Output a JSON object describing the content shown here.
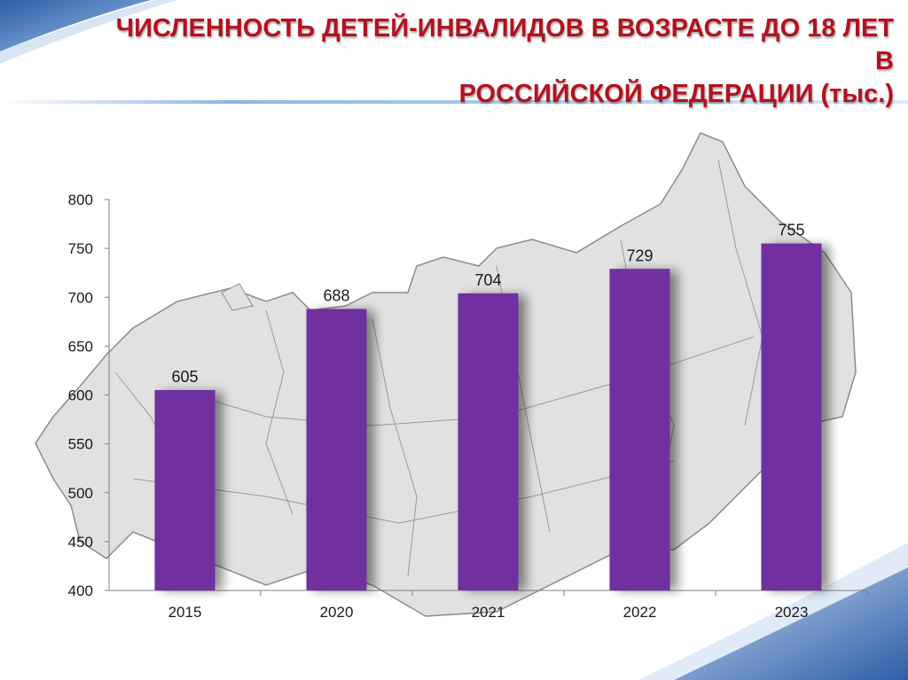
{
  "slide": {
    "title_line1": "ЧИСЛЕННОСТЬ ДЕТЕЙ-ИНВАЛИДОВ В ВОЗРАСТЕ ДО 18 ЛЕТ В",
    "title_line2": "РОССИЙСКОЙ ФЕДЕРАЦИИ (тыс.)"
  },
  "colors": {
    "title": "#b3121e",
    "bar": "#7030a0",
    "map": "#e1e1e1",
    "map_borders": "#8c8c8c",
    "accent_blue": "#3f6fb8"
  },
  "icons": [
    "russia-map-icon"
  ],
  "chart_data": {
    "type": "bar",
    "categories": [
      "2015",
      "2020",
      "2021",
      "2022",
      "2023"
    ],
    "values": [
      605,
      688,
      704,
      729,
      755
    ],
    "title": "",
    "xlabel": "",
    "ylabel": "",
    "ylim": [
      400,
      800
    ],
    "yticks": [
      400,
      450,
      500,
      550,
      600,
      650,
      700,
      750,
      800
    ],
    "data_labels": true,
    "grid": false,
    "legend": "none"
  }
}
